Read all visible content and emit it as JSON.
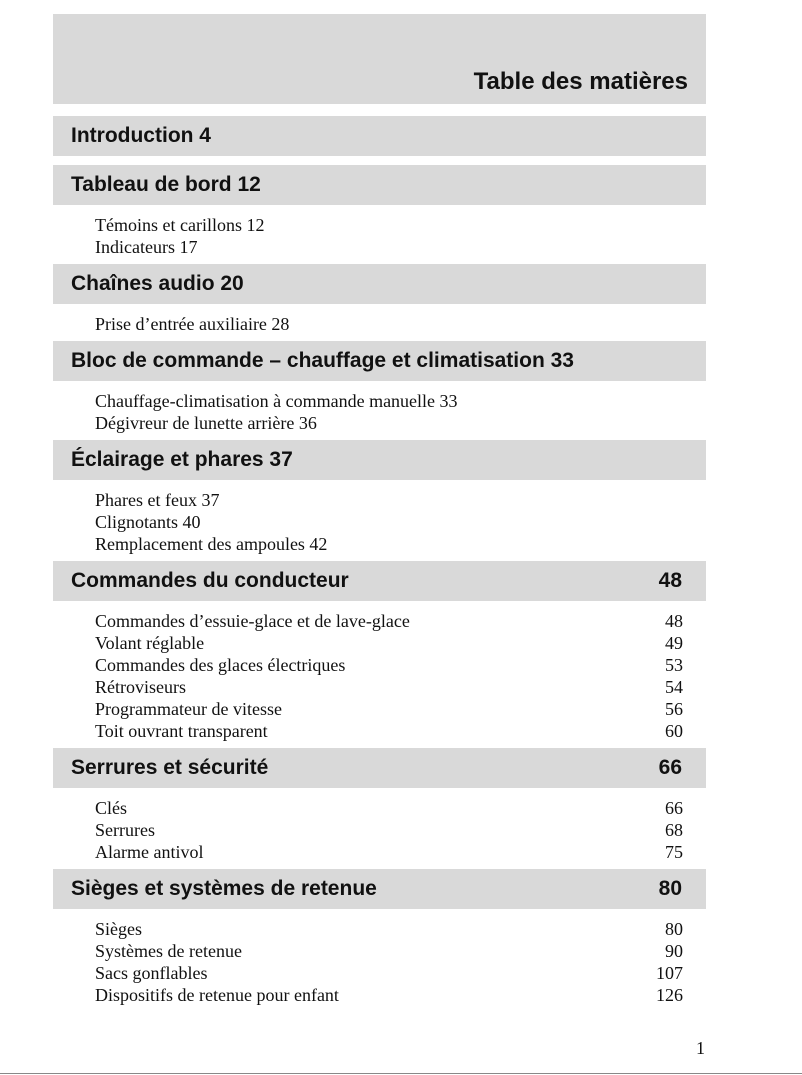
{
  "header": {
    "title": "Table des matières"
  },
  "sections": [
    {
      "title": "Introduction 4",
      "items": []
    },
    {
      "title": "Tableau de bord 12",
      "items": [
        {
          "text": "Témoins et carillons 12"
        },
        {
          "text": "Indicateurs 17"
        }
      ]
    },
    {
      "title": "Chaînes audio 20",
      "items": [
        {
          "text": "Prise d’entrée auxiliaire 28"
        }
      ]
    },
    {
      "title": "Bloc de commande – chauffage et climatisation 33",
      "items": [
        {
          "text": "Chauffage-climatisation à commande manuelle 33"
        },
        {
          "text": "Dégivreur de lunette arrière 36"
        }
      ]
    },
    {
      "title": "Éclairage et phares 37",
      "items": [
        {
          "text": "Phares et feux 37"
        },
        {
          "text": "Clignotants 40"
        },
        {
          "text": "Remplacement des ampoules 42"
        }
      ]
    },
    {
      "title": "Commandes du conducteur",
      "page": "48",
      "items": [
        {
          "text": "Commandes d’essuie-glace et de lave-glace",
          "page": "48"
        },
        {
          "text": "Volant réglable",
          "page": "49"
        },
        {
          "text": "Commandes des glaces électriques",
          "page": "53"
        },
        {
          "text": "Rétroviseurs",
          "page": "54"
        },
        {
          "text": "Programmateur de vitesse",
          "page": "56"
        },
        {
          "text": "Toit ouvrant transparent",
          "page": "60"
        }
      ]
    },
    {
      "title": "Serrures et sécurité",
      "page": "66",
      "items": [
        {
          "text": "Clés",
          "page": "66"
        },
        {
          "text": "Serrures",
          "page": "68"
        },
        {
          "text": "Alarme antivol",
          "page": "75"
        }
      ]
    },
    {
      "title": "Sièges et systèmes de retenue",
      "page": "80",
      "items": [
        {
          "text": "Sièges",
          "page": "80"
        },
        {
          "text": "Systèmes de retenue",
          "page": "90"
        },
        {
          "text": "Sacs gonflables",
          "page": "107"
        },
        {
          "text": "Dispositifs de retenue pour enfant",
          "page": "126"
        }
      ]
    }
  ],
  "footer": {
    "page_number": "1"
  }
}
